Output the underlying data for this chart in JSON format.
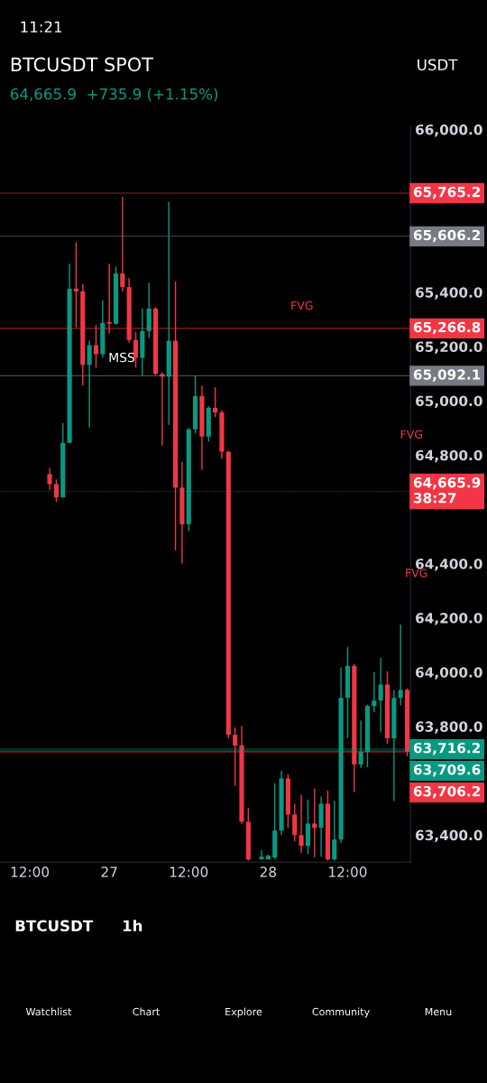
{
  "chart_data": {
    "type": "candlestick",
    "title": "BTCUSDT SPOT",
    "subtitle": "64,665.9  +735.9 (+1.15%)",
    "categories": [
      null,
      null,
      null,
      null,
      "12:00",
      null,
      null,
      null,
      null,
      null,
      null,
      null,
      null,
      null,
      null,
      null,
      "27",
      null,
      null,
      null,
      null,
      null,
      null,
      null,
      null,
      null,
      null,
      null,
      "12:00",
      null,
      null,
      null,
      null,
      null,
      null,
      null,
      null,
      null,
      null,
      null,
      "28",
      null,
      null,
      null,
      null,
      null,
      null,
      null,
      null,
      null,
      null,
      null,
      "12:00",
      null,
      null,
      null,
      null,
      null,
      null,
      null,
      null,
      null
    ],
    "ohlc": [
      null,
      null,
      null,
      null,
      null,
      null,
      null,
      [
        64730,
        64753,
        64670,
        64693
      ],
      [
        64693,
        64710,
        64627,
        64644
      ],
      [
        64644,
        64918,
        64644,
        64845
      ],
      [
        64845,
        65505,
        64845,
        65413
      ],
      [
        65413,
        65584,
        65271,
        65403
      ],
      [
        65403,
        65430,
        65056,
        65132
      ],
      [
        65132,
        65221,
        64901,
        65205
      ],
      [
        65205,
        65280,
        65122,
        65172
      ],
      [
        65172,
        65370,
        65160,
        65287
      ],
      [
        65290,
        65505,
        65248,
        65284
      ],
      [
        65284,
        65495,
        65280,
        65469
      ],
      [
        65469,
        65752,
        65403,
        65419
      ],
      [
        65419,
        65452,
        65214,
        65224
      ],
      [
        65224,
        65254,
        65122,
        65158
      ],
      [
        65158,
        65340,
        65092,
        65257
      ],
      [
        65257,
        65435,
        65231,
        65340
      ],
      [
        65340,
        65345,
        65095,
        65099
      ],
      [
        65099,
        65105,
        64835,
        65089
      ],
      [
        65089,
        65733,
        64911,
        65221
      ],
      [
        65221,
        65439,
        64449,
        64680
      ],
      [
        64680,
        64776,
        64400,
        64545
      ],
      [
        64545,
        64900,
        64520,
        64895
      ],
      [
        64895,
        65092,
        64880,
        65017
      ],
      [
        65017,
        65056,
        64746,
        64868
      ],
      [
        64868,
        64980,
        64850,
        64974
      ],
      [
        64974,
        65050,
        64940,
        64957
      ],
      [
        64957,
        64965,
        64786,
        64812
      ],
      [
        64812,
        64815,
        63756,
        63769
      ],
      [
        63769,
        63796,
        63581,
        63730
      ],
      [
        63730,
        63802,
        63440,
        63449
      ],
      [
        63449,
        63499,
        63305,
        63310
      ],
      null,
      [
        63310,
        63344,
        63310,
        63320
      ],
      [
        63310,
        63327,
        63310,
        63323
      ],
      [
        63317,
        63591,
        63310,
        63416
      ],
      [
        63416,
        63637,
        63400,
        63608
      ],
      [
        63608,
        63624,
        63426,
        63475
      ],
      [
        63475,
        63515,
        63377,
        63400
      ],
      [
        63400,
        63548,
        63334,
        63360
      ],
      [
        63360,
        63531,
        63330,
        63442
      ],
      [
        63442,
        63571,
        63317,
        63426
      ],
      [
        63426,
        63541,
        63320,
        63515
      ],
      [
        63515,
        63564,
        63305,
        63310
      ],
      [
        63310,
        63525,
        63305,
        63383
      ],
      [
        63383,
        64017,
        63370,
        63905
      ],
      [
        63905,
        64093,
        63756,
        64023
      ],
      [
        64023,
        64030,
        63558,
        63660
      ],
      [
        63660,
        63822,
        63647,
        63706
      ],
      [
        63706,
        63880,
        63650,
        63875
      ],
      [
        63875,
        64000,
        63852,
        63895
      ],
      [
        63895,
        64053,
        63779,
        63954
      ],
      [
        63954,
        64003,
        63736,
        63756
      ],
      [
        63756,
        63934,
        63525,
        63905
      ],
      [
        63905,
        64175,
        63878,
        63934
      ],
      [
        63934,
        63940,
        63690,
        63706.2
      ]
    ],
    "colors": [
      null,
      null,
      null,
      null,
      null,
      null,
      null,
      "#f23645",
      "#f23645",
      "#089981",
      "#089981",
      "#f23645",
      "#f23645",
      "#089981",
      "#f23645",
      "#089981",
      "#f23645",
      "#089981",
      "#f23645",
      "#f23645",
      "#f23645",
      "#089981",
      "#089981",
      "#f23645",
      "#f23645",
      "#089981",
      "#f23645",
      "#f23645",
      "#089981",
      "#089981",
      "#f23645",
      "#089981",
      "#f23645",
      "#f23645",
      "#f23645",
      "#f23645",
      "#f23645",
      "#f23645",
      null,
      "#089981",
      "#089981",
      "#089981",
      "#089981",
      "#f23645",
      "#f23645",
      "#f23645",
      "#089981",
      "#f23645",
      "#089981",
      "#f23645",
      "#089981",
      "#089981",
      "#089981",
      "#f23645",
      "#089981",
      "#089981",
      "#089981",
      "#089981",
      "#f23645",
      "#089981",
      "#089981",
      "#f23645"
    ],
    "ylim": [
      63300,
      66010
    ],
    "yticks": [
      {
        "value": 66000,
        "label": "66,000.0"
      },
      {
        "value": 65400,
        "label": "65,400.0"
      },
      {
        "value": 65200,
        "label": "65,200.0"
      },
      {
        "value": 65000,
        "label": "65,000.0"
      },
      {
        "value": 64800,
        "label": "64,800.0"
      },
      {
        "value": 64400,
        "label": "64,400.0"
      },
      {
        "value": 64200,
        "label": "64,200.0"
      },
      {
        "value": 64000,
        "label": "64,000.0"
      },
      {
        "value": 63800,
        "label": "63,800.0"
      },
      {
        "value": 63400,
        "label": "63,400.0"
      }
    ],
    "grid": false,
    "ref_lines": [
      {
        "axis": "y",
        "value": 65765.2,
        "label": "65,765.2",
        "color": "#f23645",
        "line_style": "solid"
      },
      {
        "axis": "y",
        "value": 65606.2,
        "label": "65,606.2",
        "color": "#787b86",
        "line_style": "solid"
      },
      {
        "axis": "y",
        "value": 65266.8,
        "label": "65,266.8",
        "color": "#f23645",
        "line_style": "solid"
      },
      {
        "axis": "y",
        "value": 65092.1,
        "label": "65,092.1",
        "color": "#787b86",
        "line_style": "solid"
      },
      {
        "axis": "y",
        "value": 64665.9,
        "label": "64,665.9\n38:27",
        "color": "#f23645",
        "line_style": "dotted"
      },
      {
        "axis": "y",
        "value": 63716.2,
        "label": "63,716.2",
        "color": "#089981",
        "line_style": "solid"
      },
      {
        "axis": "y",
        "value": 63709.6,
        "label": "63,709.6",
        "color": "#089981",
        "line_style": "solid"
      },
      {
        "axis": "y",
        "value": 63706.2,
        "label": "63,706.2",
        "color": "#f23645",
        "line_style": "solid"
      }
    ],
    "annotations": [
      "MSS",
      "FVG",
      "FVG",
      "FVG",
      "11:21",
      "USDT",
      "BTCUSDT",
      "1h",
      "Watchlist",
      "Chart",
      "Explore",
      "Community",
      "Menu"
    ]
  }
}
